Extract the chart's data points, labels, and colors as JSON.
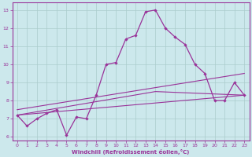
{
  "xlabel": "Windchill (Refroidissement éolien,°C)",
  "background_color": "#cce8ec",
  "grid_color": "#aacccc",
  "line_color": "#993399",
  "xlim": [
    -0.5,
    23.5
  ],
  "ylim": [
    5.8,
    13.4
  ],
  "xticks": [
    0,
    1,
    2,
    3,
    4,
    5,
    6,
    7,
    8,
    9,
    10,
    11,
    12,
    13,
    14,
    15,
    16,
    17,
    18,
    19,
    20,
    21,
    22,
    23
  ],
  "yticks": [
    6,
    7,
    8,
    9,
    10,
    11,
    12,
    13
  ],
  "main_x": [
    0,
    1,
    2,
    3,
    4,
    5,
    6,
    7,
    8,
    9,
    10,
    11,
    12,
    13,
    14,
    15,
    16,
    17,
    18,
    19,
    20,
    21,
    22,
    23
  ],
  "main_y": [
    7.2,
    6.6,
    7.0,
    7.3,
    7.5,
    6.1,
    7.1,
    7.0,
    8.3,
    10.0,
    10.1,
    11.4,
    11.6,
    12.9,
    13.0,
    12.0,
    11.5,
    11.1,
    10.0,
    9.5,
    8.0,
    8.0,
    9.0,
    8.3
  ],
  "line1_x": [
    0,
    23
  ],
  "line1_y": [
    7.2,
    8.3
  ],
  "line2_x": [
    0,
    14,
    23
  ],
  "line2_y": [
    7.2,
    8.5,
    8.3
  ],
  "line3_x": [
    0,
    23
  ],
  "line3_y": [
    7.5,
    9.5
  ]
}
